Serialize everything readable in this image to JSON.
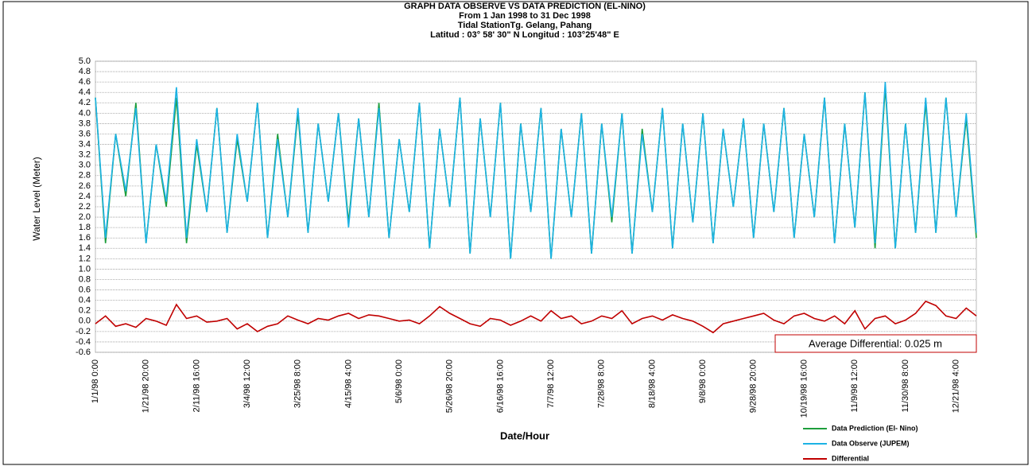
{
  "chart_data": {
    "type": "line",
    "title": [
      "GRAPH  DATA OBSERVE VS DATA PREDICTION (EL-NINO)",
      "From  1 Jan 1998 to 31  Dec 1998",
      "Tidal StationTg. Gelang, Pahang",
      "Latitud : 03° 58' 30\" N    Longitud : 103°25'48\" E"
    ],
    "x_label": "Date/Hour",
    "y_label": "Water Level (Meter)",
    "annotation": "Average Differential: 0.025 m",
    "categories": [
      "1/1/98 0:00",
      null,
      null,
      null,
      null,
      "1/21/98 20:00",
      null,
      null,
      null,
      null,
      "2/11/98 16:00",
      null,
      null,
      null,
      null,
      "3/4/98 12:00",
      null,
      null,
      null,
      null,
      "3/25/98 8:00",
      null,
      null,
      null,
      null,
      "4/15/98 4:00",
      null,
      null,
      null,
      null,
      "5/6/98 0:00",
      null,
      null,
      null,
      null,
      "5/26/98 20:00",
      null,
      null,
      null,
      null,
      "6/16/98 16:00",
      null,
      null,
      null,
      null,
      "7/7/98 12:00",
      null,
      null,
      null,
      null,
      "7/28/98 8:00",
      null,
      null,
      null,
      null,
      "8/18/98 4:00",
      null,
      null,
      null,
      null,
      "9/8/98 0:00",
      null,
      null,
      null,
      null,
      "9/28/98 20:00",
      null,
      null,
      null,
      null,
      "10/19/98 16:00",
      null,
      null,
      null,
      null,
      "11/9/98 12:00",
      null,
      null,
      null,
      null,
      "11/30/98 8:00",
      null,
      null,
      null,
      null,
      "12/21/98 4:00",
      null,
      null
    ],
    "series": [
      {
        "name": "Data Prediction (El- Nino)",
        "color": "#1e9e3c",
        "values": [
          4.3,
          1.5,
          3.6,
          2.4,
          4.2,
          1.5,
          3.4,
          2.2,
          4.3,
          1.5,
          3.4,
          2.1,
          4.1,
          1.7,
          3.5,
          2.3,
          4.2,
          1.6,
          3.6,
          2.0,
          4.0,
          1.7,
          3.8,
          2.3,
          4.0,
          1.9,
          3.9,
          2.0,
          4.2,
          1.6,
          3.5,
          2.1,
          4.2,
          1.4,
          3.7,
          2.2,
          4.3,
          1.3,
          3.9,
          2.0,
          4.2,
          1.2,
          3.8,
          2.1,
          4.1,
          1.2,
          3.7,
          2.0,
          4.0,
          1.3,
          3.8,
          1.9,
          4.0,
          1.3,
          3.7,
          2.1,
          4.1,
          1.4,
          3.8,
          1.9,
          4.0,
          1.5,
          3.7,
          2.2,
          3.9,
          1.6,
          3.8,
          2.1,
          4.1,
          1.6,
          3.6,
          2.0,
          4.3,
          1.5,
          3.8,
          1.8,
          4.4,
          1.4,
          4.5,
          1.4,
          3.8,
          1.7,
          4.2,
          1.7,
          4.3,
          2.0,
          3.9,
          1.6
        ]
      },
      {
        "name": "Data Observe (JUPEM)",
        "color": "#1cb2e4",
        "values": [
          4.3,
          1.6,
          3.6,
          2.5,
          4.1,
          1.5,
          3.4,
          2.3,
          4.5,
          1.6,
          3.5,
          2.1,
          4.1,
          1.7,
          3.6,
          2.3,
          4.2,
          1.6,
          3.5,
          2.0,
          4.1,
          1.7,
          3.8,
          2.3,
          4.0,
          1.8,
          3.9,
          2.0,
          4.1,
          1.6,
          3.5,
          2.1,
          4.2,
          1.4,
          3.7,
          2.2,
          4.3,
          1.3,
          3.9,
          2.0,
          4.2,
          1.2,
          3.8,
          2.1,
          4.1,
          1.2,
          3.7,
          2.0,
          4.0,
          1.3,
          3.8,
          2.0,
          4.0,
          1.3,
          3.6,
          2.1,
          4.1,
          1.4,
          3.8,
          1.9,
          4.0,
          1.5,
          3.7,
          2.2,
          3.9,
          1.6,
          3.8,
          2.1,
          4.1,
          1.6,
          3.6,
          2.0,
          4.3,
          1.5,
          3.8,
          1.8,
          4.4,
          1.5,
          4.6,
          1.4,
          3.8,
          1.7,
          4.3,
          1.7,
          4.3,
          2.0,
          4.0,
          1.7
        ]
      },
      {
        "name": "Differential",
        "color": "#c00000",
        "values": [
          -0.05,
          0.1,
          -0.1,
          -0.05,
          -0.12,
          0.05,
          0.0,
          -0.08,
          0.32,
          0.05,
          0.1,
          -0.02,
          0.0,
          0.05,
          -0.15,
          -0.05,
          -0.2,
          -0.1,
          -0.05,
          0.1,
          0.02,
          -0.05,
          0.05,
          0.02,
          0.1,
          0.15,
          0.05,
          0.12,
          0.1,
          0.05,
          0.0,
          0.02,
          -0.05,
          0.1,
          0.28,
          0.15,
          0.05,
          -0.05,
          -0.1,
          0.05,
          0.02,
          -0.08,
          0.0,
          0.1,
          0.0,
          0.2,
          0.05,
          0.1,
          -0.05,
          0.0,
          0.1,
          0.05,
          0.2,
          -0.05,
          0.05,
          0.1,
          0.02,
          0.12,
          0.05,
          0.0,
          -0.1,
          -0.22,
          -0.05,
          0.0,
          0.05,
          0.1,
          0.15,
          0.02,
          -0.05,
          0.1,
          0.15,
          0.05,
          0.0,
          0.1,
          -0.05,
          0.2,
          -0.15,
          0.05,
          0.1,
          -0.05,
          0.02,
          0.15,
          0.38,
          0.3,
          0.1,
          0.05,
          0.25,
          0.1
        ]
      }
    ],
    "ylim": [
      -0.6,
      5.0
    ],
    "yticks": [
      {
        "value": 5,
        "label": "5.0"
      },
      4.8,
      4.6,
      4.4,
      4.2,
      {
        "value": 4,
        "label": "4.0"
      },
      3.8,
      3.6,
      3.4,
      3.2,
      {
        "value": 3,
        "label": "3.0"
      },
      2.8,
      2.6,
      2.4,
      2.2,
      {
        "value": 2,
        "label": "2.0"
      },
      1.8,
      1.6,
      1.4,
      1.2,
      {
        "value": 1,
        "label": "1.0"
      },
      0.8,
      0.6,
      0.4,
      0.2,
      {
        "value": 0,
        "label": "0.0"
      },
      -0.2,
      -0.4,
      -0.6
    ],
    "grid": true
  }
}
